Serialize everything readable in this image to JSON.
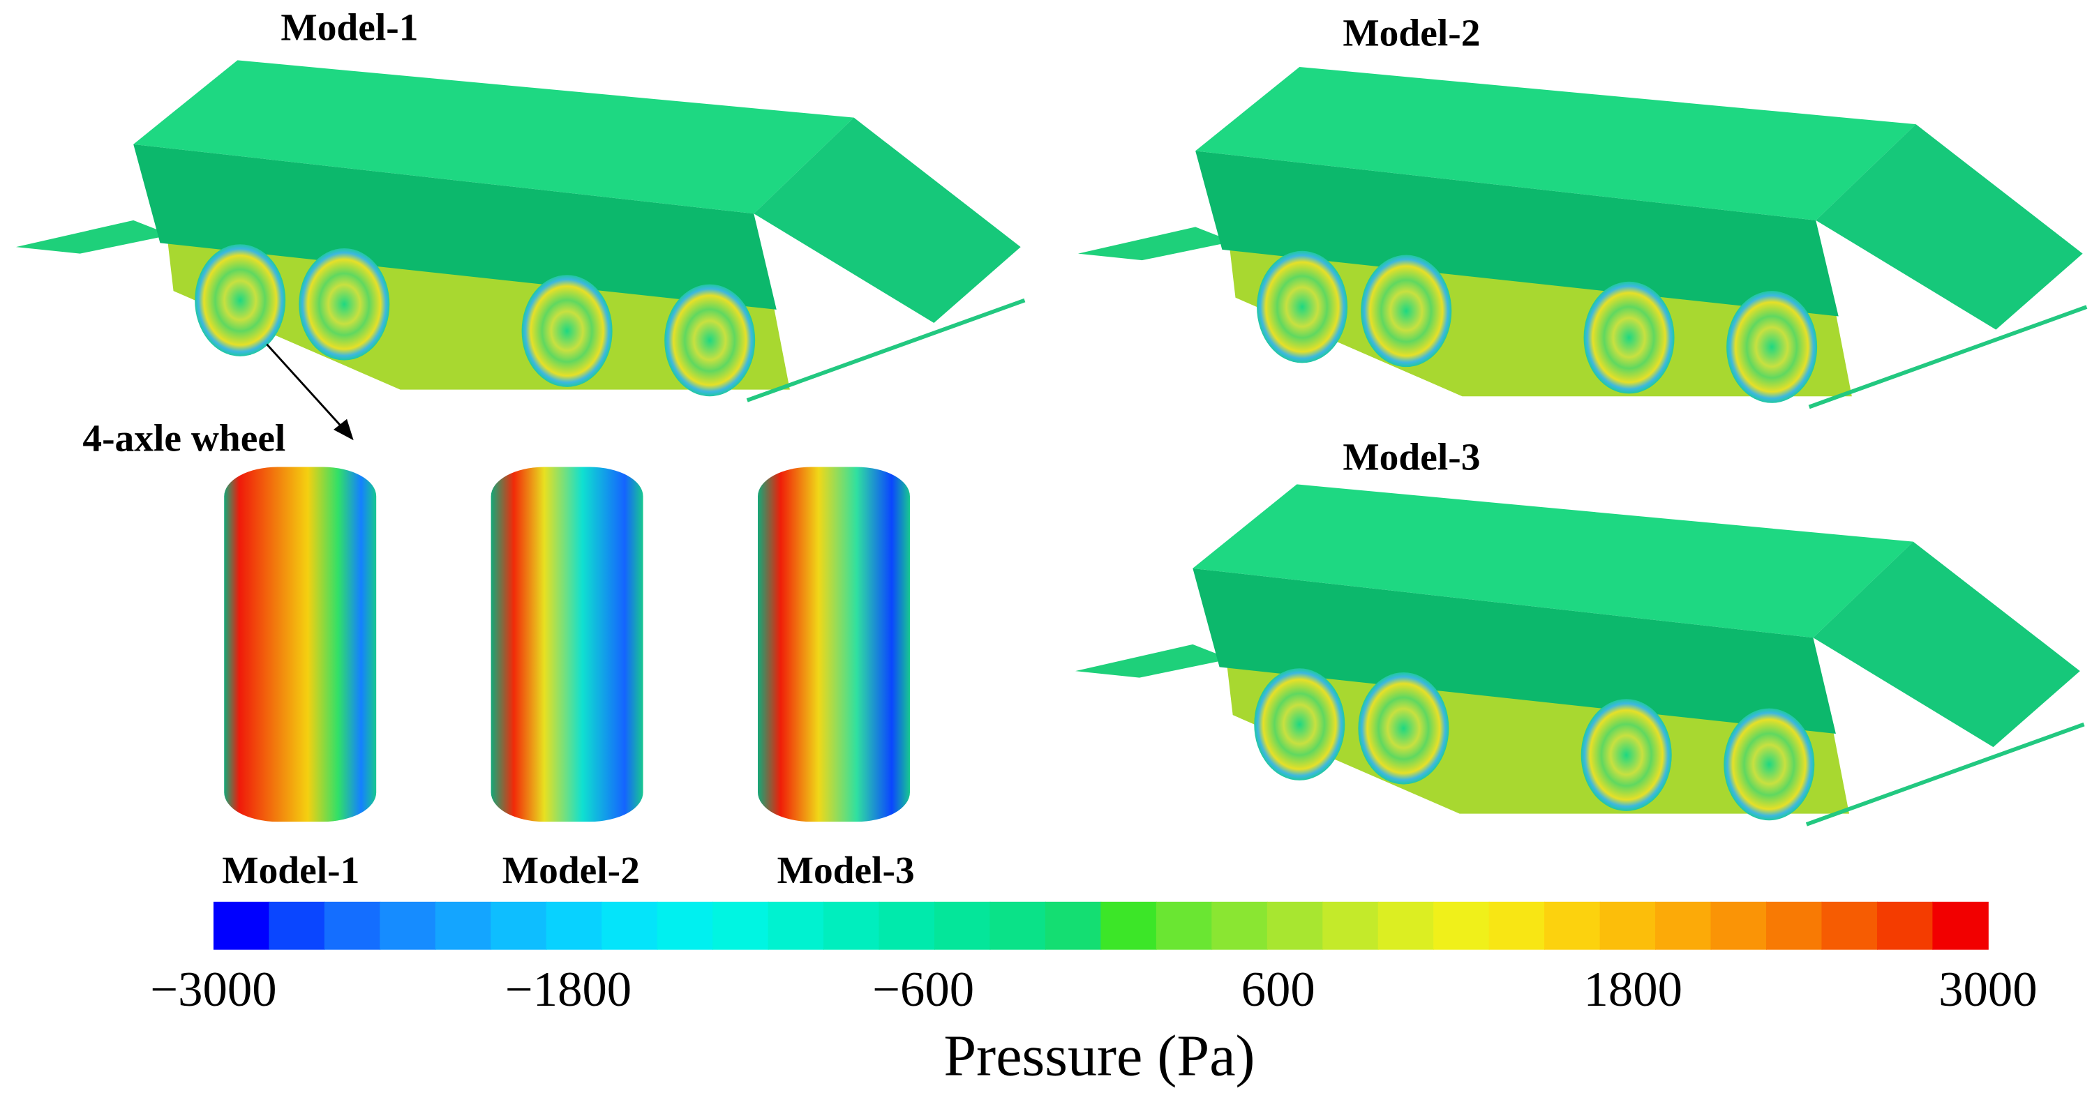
{
  "panels": [
    {
      "title": "Model-1"
    },
    {
      "title": "Model-2"
    },
    {
      "title": "Model-3"
    }
  ],
  "wheel_panel": {
    "title": "4-axle wheel",
    "labels": [
      "Model-1",
      "Model-2",
      "Model-3"
    ]
  },
  "colorbar": {
    "label": "Pressure (Pa)",
    "lim": [
      -3000,
      3000
    ],
    "ticks": [
      {
        "value": -3000,
        "label": "−3000"
      },
      {
        "value": -1800,
        "label": "−1800"
      },
      {
        "value": -600,
        "label": "−600"
      },
      600,
      1800,
      3000
    ],
    "colors": [
      "#0000ff",
      "#0a46ff",
      "#146eff",
      "#168cff",
      "#14a5ff",
      "#0ebeff",
      "#08d2ff",
      "#04e4fa",
      "#00f0f0",
      "#00f5e2",
      "#00f2d0",
      "#00eebe",
      "#00eaac",
      "#04e69a",
      "#0ae288",
      "#14de72",
      "#3ce628",
      "#6ae632",
      "#8ae632",
      "#a8e630",
      "#c4ea2a",
      "#dcee22",
      "#f0f01a",
      "#f8e614",
      "#fcd20e",
      "#fcbe0a",
      "#fcaa08",
      "#fa9406",
      "#f87a04",
      "#f65c02",
      "#f43c00",
      "#f20000"
    ]
  }
}
